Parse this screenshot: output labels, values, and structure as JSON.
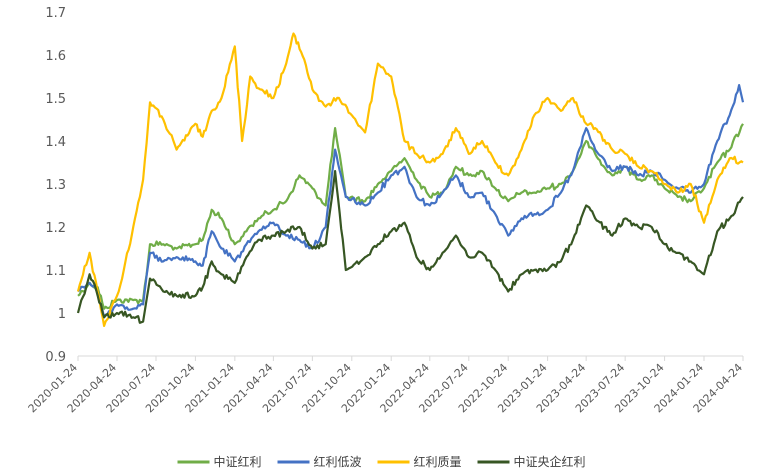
{
  "chart_data": {
    "type": "line",
    "title": "",
    "xlabel": "",
    "ylabel": "",
    "ylim": [
      0.9,
      1.7
    ],
    "y_ticks": [
      "0.9",
      "1",
      "1.1",
      "1.2",
      "1.3",
      "1.4",
      "1.5",
      "1.6",
      "1.7"
    ],
    "x_range": [
      "2020-01-24",
      "2024-04-24"
    ],
    "x_ticks": [
      "2020-01-24",
      "2020-04-24",
      "2020-07-24",
      "2020-10-24",
      "2021-01-24",
      "2021-04-24",
      "2021-07-24",
      "2021-10-24",
      "2022-01-24",
      "2022-04-24",
      "2022-07-24",
      "2022-10-24",
      "2023-01-24",
      "2023-04-24",
      "2023-07-24",
      "2023-10-24",
      "2024-01-24",
      "2024-04-24"
    ],
    "grid": false,
    "legend_position": "bottom",
    "series": [
      {
        "name": "中证红利",
        "color": "#70ad47",
        "points": [
          [
            "2020-01-24",
            1.04
          ],
          [
            "2020-02-20",
            1.07
          ],
          [
            "2020-03-10",
            1.06
          ],
          [
            "2020-03-25",
            1.01
          ],
          [
            "2020-04-24",
            1.03
          ],
          [
            "2020-06-01",
            1.03
          ],
          [
            "2020-06-24",
            1.03
          ],
          [
            "2020-07-10",
            1.16
          ],
          [
            "2020-08-10",
            1.16
          ],
          [
            "2020-09-10",
            1.15
          ],
          [
            "2020-10-24",
            1.16
          ],
          [
            "2020-11-10",
            1.17
          ],
          [
            "2020-12-01",
            1.24
          ],
          [
            "2020-12-24",
            1.22
          ],
          [
            "2021-01-24",
            1.16
          ],
          [
            "2021-02-20",
            1.19
          ],
          [
            "2021-03-20",
            1.22
          ],
          [
            "2021-04-24",
            1.24
          ],
          [
            "2021-05-24",
            1.26
          ],
          [
            "2021-06-24",
            1.32
          ],
          [
            "2021-07-24",
            1.29
          ],
          [
            "2021-08-24",
            1.25
          ],
          [
            "2021-09-15",
            1.43
          ],
          [
            "2021-10-10",
            1.27
          ],
          [
            "2021-11-24",
            1.26
          ],
          [
            "2021-12-24",
            1.3
          ],
          [
            "2022-01-24",
            1.33
          ],
          [
            "2022-02-24",
            1.36
          ],
          [
            "2022-03-24",
            1.31
          ],
          [
            "2022-04-24",
            1.27
          ],
          [
            "2022-05-24",
            1.28
          ],
          [
            "2022-06-24",
            1.34
          ],
          [
            "2022-07-24",
            1.32
          ],
          [
            "2022-08-24",
            1.33
          ],
          [
            "2022-09-24",
            1.29
          ],
          [
            "2022-10-24",
            1.26
          ],
          [
            "2022-11-24",
            1.28
          ],
          [
            "2022-12-24",
            1.28
          ],
          [
            "2023-01-24",
            1.29
          ],
          [
            "2023-02-24",
            1.3
          ],
          [
            "2023-03-24",
            1.33
          ],
          [
            "2023-04-24",
            1.4
          ],
          [
            "2023-05-15",
            1.37
          ],
          [
            "2023-06-24",
            1.32
          ],
          [
            "2023-07-24",
            1.34
          ],
          [
            "2023-08-24",
            1.31
          ],
          [
            "2023-09-24",
            1.32
          ],
          [
            "2023-10-24",
            1.29
          ],
          [
            "2023-11-24",
            1.27
          ],
          [
            "2023-12-24",
            1.26
          ],
          [
            "2024-01-24",
            1.29
          ],
          [
            "2024-02-24",
            1.35
          ],
          [
            "2024-03-24",
            1.38
          ],
          [
            "2024-04-24",
            1.44
          ]
        ]
      },
      {
        "name": "红利低波",
        "color": "#4472c4",
        "points": [
          [
            "2020-01-24",
            1.05
          ],
          [
            "2020-02-20",
            1.07
          ],
          [
            "2020-03-10",
            1.05
          ],
          [
            "2020-03-25",
            0.99
          ],
          [
            "2020-04-24",
            1.02
          ],
          [
            "2020-06-01",
            1.01
          ],
          [
            "2020-06-24",
            1.02
          ],
          [
            "2020-07-10",
            1.14
          ],
          [
            "2020-08-10",
            1.12
          ],
          [
            "2020-09-10",
            1.13
          ],
          [
            "2020-10-24",
            1.12
          ],
          [
            "2020-11-10",
            1.11
          ],
          [
            "2020-12-01",
            1.19
          ],
          [
            "2020-12-24",
            1.15
          ],
          [
            "2021-01-24",
            1.12
          ],
          [
            "2021-02-20",
            1.16
          ],
          [
            "2021-03-20",
            1.19
          ],
          [
            "2021-04-24",
            1.21
          ],
          [
            "2021-05-24",
            1.18
          ],
          [
            "2021-06-24",
            1.17
          ],
          [
            "2021-07-24",
            1.15
          ],
          [
            "2021-08-24",
            1.2
          ],
          [
            "2021-09-15",
            1.38
          ],
          [
            "2021-10-10",
            1.27
          ],
          [
            "2021-11-24",
            1.25
          ],
          [
            "2021-12-24",
            1.28
          ],
          [
            "2022-01-24",
            1.32
          ],
          [
            "2022-02-24",
            1.34
          ],
          [
            "2022-03-24",
            1.27
          ],
          [
            "2022-04-24",
            1.25
          ],
          [
            "2022-05-24",
            1.28
          ],
          [
            "2022-06-24",
            1.32
          ],
          [
            "2022-07-24",
            1.27
          ],
          [
            "2022-08-24",
            1.28
          ],
          [
            "2022-09-24",
            1.23
          ],
          [
            "2022-10-24",
            1.18
          ],
          [
            "2022-11-24",
            1.22
          ],
          [
            "2022-12-24",
            1.23
          ],
          [
            "2023-01-24",
            1.24
          ],
          [
            "2023-02-24",
            1.28
          ],
          [
            "2023-03-24",
            1.33
          ],
          [
            "2023-04-24",
            1.43
          ],
          [
            "2023-05-15",
            1.38
          ],
          [
            "2023-06-24",
            1.33
          ],
          [
            "2023-07-24",
            1.34
          ],
          [
            "2023-08-24",
            1.32
          ],
          [
            "2023-09-24",
            1.33
          ],
          [
            "2023-10-24",
            1.31
          ],
          [
            "2023-11-24",
            1.29
          ],
          [
            "2023-12-24",
            1.28
          ],
          [
            "2024-01-24",
            1.3
          ],
          [
            "2024-02-24",
            1.4
          ],
          [
            "2024-03-24",
            1.46
          ],
          [
            "2024-04-15",
            1.53
          ],
          [
            "2024-04-24",
            1.49
          ]
        ]
      },
      {
        "name": "红利质量",
        "color": "#ffc000",
        "points": [
          [
            "2020-01-24",
            1.05
          ],
          [
            "2020-02-20",
            1.14
          ],
          [
            "2020-03-10",
            1.05
          ],
          [
            "2020-03-25",
            0.97
          ],
          [
            "2020-04-24",
            1.04
          ],
          [
            "2020-05-10",
            1.1
          ],
          [
            "2020-06-05",
            1.22
          ],
          [
            "2020-06-24",
            1.31
          ],
          [
            "2020-07-10",
            1.49
          ],
          [
            "2020-08-10",
            1.45
          ],
          [
            "2020-09-10",
            1.38
          ],
          [
            "2020-10-24",
            1.44
          ],
          [
            "2020-11-10",
            1.41
          ],
          [
            "2020-12-01",
            1.47
          ],
          [
            "2020-12-24",
            1.5
          ],
          [
            "2021-01-24",
            1.62
          ],
          [
            "2021-02-10",
            1.4
          ],
          [
            "2021-03-01",
            1.55
          ],
          [
            "2021-03-24",
            1.52
          ],
          [
            "2021-04-24",
            1.5
          ],
          [
            "2021-05-24",
            1.58
          ],
          [
            "2021-06-10",
            1.65
          ],
          [
            "2021-07-05",
            1.59
          ],
          [
            "2021-07-24",
            1.52
          ],
          [
            "2021-08-24",
            1.48
          ],
          [
            "2021-09-24",
            1.5
          ],
          [
            "2021-10-24",
            1.46
          ],
          [
            "2021-11-24",
            1.42
          ],
          [
            "2021-12-24",
            1.58
          ],
          [
            "2022-01-24",
            1.55
          ],
          [
            "2022-02-24",
            1.4
          ],
          [
            "2022-03-24",
            1.37
          ],
          [
            "2022-04-24",
            1.35
          ],
          [
            "2022-05-24",
            1.37
          ],
          [
            "2022-06-24",
            1.43
          ],
          [
            "2022-07-24",
            1.37
          ],
          [
            "2022-08-24",
            1.4
          ],
          [
            "2022-09-24",
            1.35
          ],
          [
            "2022-10-24",
            1.32
          ],
          [
            "2022-11-24",
            1.38
          ],
          [
            "2022-12-24",
            1.46
          ],
          [
            "2023-01-24",
            1.5
          ],
          [
            "2023-02-24",
            1.47
          ],
          [
            "2023-03-24",
            1.5
          ],
          [
            "2023-04-24",
            1.44
          ],
          [
            "2023-05-15",
            1.43
          ],
          [
            "2023-06-24",
            1.38
          ],
          [
            "2023-07-24",
            1.37
          ],
          [
            "2023-08-24",
            1.34
          ],
          [
            "2023-09-24",
            1.33
          ],
          [
            "2023-10-24",
            1.3
          ],
          [
            "2023-11-24",
            1.28
          ],
          [
            "2023-12-24",
            1.3
          ],
          [
            "2024-01-24",
            1.21
          ],
          [
            "2024-02-24",
            1.31
          ],
          [
            "2024-03-24",
            1.36
          ],
          [
            "2024-04-24",
            1.35
          ]
        ]
      },
      {
        "name": "中证央企红利",
        "color": "#375623",
        "points": [
          [
            "2020-01-24",
            1.0
          ],
          [
            "2020-02-20",
            1.09
          ],
          [
            "2020-03-10",
            1.04
          ],
          [
            "2020-03-25",
            0.99
          ],
          [
            "2020-04-24",
            1.0
          ],
          [
            "2020-06-01",
            0.99
          ],
          [
            "2020-06-24",
            0.98
          ],
          [
            "2020-07-10",
            1.08
          ],
          [
            "2020-08-10",
            1.05
          ],
          [
            "2020-09-10",
            1.04
          ],
          [
            "2020-10-24",
            1.04
          ],
          [
            "2020-11-10",
            1.06
          ],
          [
            "2020-12-01",
            1.12
          ],
          [
            "2020-12-24",
            1.09
          ],
          [
            "2021-01-24",
            1.07
          ],
          [
            "2021-02-20",
            1.13
          ],
          [
            "2021-03-20",
            1.17
          ],
          [
            "2021-04-24",
            1.18
          ],
          [
            "2021-05-24",
            1.19
          ],
          [
            "2021-06-24",
            1.2
          ],
          [
            "2021-07-24",
            1.15
          ],
          [
            "2021-08-24",
            1.16
          ],
          [
            "2021-09-15",
            1.33
          ],
          [
            "2021-10-10",
            1.1
          ],
          [
            "2021-11-24",
            1.13
          ],
          [
            "2021-12-24",
            1.16
          ],
          [
            "2022-01-24",
            1.19
          ],
          [
            "2022-02-24",
            1.21
          ],
          [
            "2022-03-24",
            1.13
          ],
          [
            "2022-04-24",
            1.1
          ],
          [
            "2022-05-24",
            1.14
          ],
          [
            "2022-06-24",
            1.18
          ],
          [
            "2022-07-24",
            1.13
          ],
          [
            "2022-08-24",
            1.14
          ],
          [
            "2022-09-24",
            1.1
          ],
          [
            "2022-10-24",
            1.05
          ],
          [
            "2022-11-24",
            1.09
          ],
          [
            "2022-12-24",
            1.1
          ],
          [
            "2023-01-24",
            1.1
          ],
          [
            "2023-02-24",
            1.12
          ],
          [
            "2023-03-24",
            1.17
          ],
          [
            "2023-04-24",
            1.25
          ],
          [
            "2023-05-15",
            1.22
          ],
          [
            "2023-06-24",
            1.18
          ],
          [
            "2023-07-24",
            1.22
          ],
          [
            "2023-08-24",
            1.2
          ],
          [
            "2023-09-24",
            1.2
          ],
          [
            "2023-10-24",
            1.16
          ],
          [
            "2023-11-24",
            1.14
          ],
          [
            "2023-12-24",
            1.12
          ],
          [
            "2024-01-24",
            1.09
          ],
          [
            "2024-02-24",
            1.19
          ],
          [
            "2024-03-24",
            1.22
          ],
          [
            "2024-04-24",
            1.27
          ]
        ]
      }
    ]
  }
}
